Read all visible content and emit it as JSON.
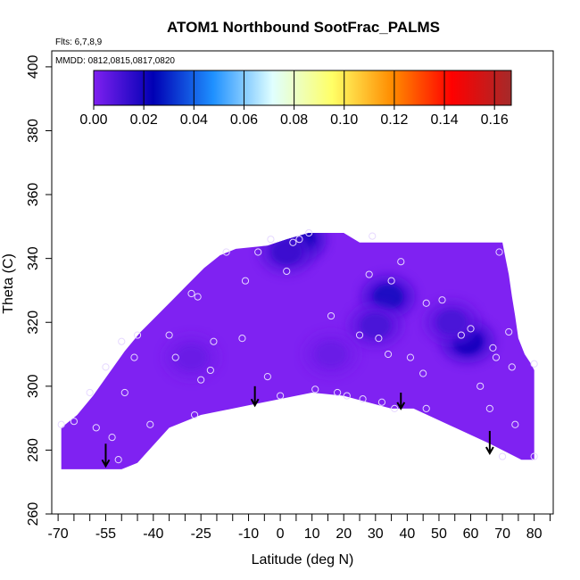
{
  "chart_data": {
    "type": "heatmap",
    "title": "ATOM1 Northbound SootFrac_PALMS",
    "flights_label": "Flts: 6,7,8,9",
    "dates_label": "MMDD: 0812,0815,0817,0820",
    "xlabel": "Latitude (deg N)",
    "ylabel": "Theta (C)",
    "xlim": [
      -72,
      86
    ],
    "ylim": [
      260,
      405
    ],
    "x_ticks": [
      -70,
      -55,
      -40,
      -25,
      -10,
      0,
      10,
      20,
      30,
      40,
      50,
      60,
      70,
      80
    ],
    "x_tick_labels": [
      "-70",
      "-55",
      "-40",
      "-25",
      "-10",
      "0",
      "10",
      "20",
      "30",
      "40",
      "50",
      "60",
      "70",
      "80"
    ],
    "x_minor_ticks": [
      -65,
      -60,
      -50,
      -45,
      -35,
      -30,
      -20,
      -15,
      -5,
      5,
      15,
      25,
      35,
      45,
      55,
      65,
      75,
      85
    ],
    "y_ticks": [
      260,
      280,
      300,
      320,
      340,
      360,
      380,
      400
    ],
    "y_tick_labels": [
      "260",
      "280",
      "300",
      "320",
      "340",
      "360",
      "380",
      "400"
    ],
    "colorbar": {
      "range": [
        0,
        0.1667
      ],
      "ticks": [
        0.0,
        0.02,
        0.04,
        0.06,
        0.08,
        0.1,
        0.12,
        0.14,
        0.16
      ],
      "tick_labels": [
        "0.00",
        "0.02",
        "0.04",
        "0.06",
        "0.08",
        "0.10",
        "0.12",
        "0.14",
        "0.16"
      ],
      "colors": [
        "#7f20f0",
        "#0000b4",
        "#1e90ff",
        "#e0ffff",
        "#ffff66",
        "#ff8c00",
        "#ff0000",
        "#a52a2a"
      ]
    },
    "field": {
      "background_value": 0.0,
      "background_color": "#7f22f2",
      "outline": [
        [
          -69,
          273
        ],
        [
          -69,
          287
        ],
        [
          -64,
          291
        ],
        [
          -59,
          297
        ],
        [
          -54,
          304
        ],
        [
          -49,
          311
        ],
        [
          -44,
          317
        ],
        [
          -39,
          322
        ],
        [
          -34,
          327
        ],
        [
          -29,
          332
        ],
        [
          -24,
          337
        ],
        [
          -19,
          341
        ],
        [
          -14,
          343
        ],
        [
          -4,
          344
        ],
        [
          -1,
          345
        ],
        [
          2,
          346
        ],
        [
          9,
          348
        ],
        [
          20,
          348
        ],
        [
          25,
          345
        ],
        [
          70,
          345
        ],
        [
          71,
          340
        ],
        [
          72,
          335
        ],
        [
          73,
          328
        ],
        [
          74,
          322
        ],
        [
          75,
          315
        ],
        [
          77,
          310
        ],
        [
          79,
          307
        ],
        [
          80,
          305
        ],
        [
          80,
          277
        ],
        [
          76,
          277
        ],
        [
          66,
          282
        ],
        [
          42,
          293
        ],
        [
          35,
          293
        ],
        [
          20,
          297
        ],
        [
          10,
          298
        ],
        [
          0,
          296
        ],
        [
          -10,
          294
        ],
        [
          -25,
          291
        ],
        [
          -35,
          287
        ],
        [
          -45,
          276
        ],
        [
          -50,
          274
        ],
        [
          -69,
          274
        ]
      ],
      "hotspots": [
        {
          "lat": 6,
          "theta": 346,
          "value": 0.022
        },
        {
          "lat": 2,
          "theta": 342,
          "value": 0.013
        },
        {
          "lat": 34,
          "theta": 328,
          "value": 0.018
        },
        {
          "lat": 30,
          "theta": 319,
          "value": 0.01
        },
        {
          "lat": 59,
          "theta": 314,
          "value": 0.02
        },
        {
          "lat": 54,
          "theta": 320,
          "value": 0.01
        },
        {
          "lat": -28,
          "theta": 309,
          "value": 0.004
        },
        {
          "lat": 16,
          "theta": 310,
          "value": 0.004
        }
      ]
    },
    "observations": {
      "lat": [
        -69,
        -65,
        -60,
        -55,
        -50,
        -58,
        -53,
        -51,
        -49,
        -46,
        -45,
        -41,
        -35,
        -33,
        -28,
        -27,
        -26,
        -25,
        -22,
        -21,
        -17,
        -12,
        -11,
        -7,
        -4,
        -3,
        0,
        2,
        4,
        6,
        9,
        11,
        16,
        18,
        21,
        25,
        26,
        28,
        29,
        31,
        32,
        34,
        35,
        36,
        38,
        41,
        45,
        46,
        46,
        51,
        57,
        60,
        63,
        66,
        67,
        68,
        69,
        70,
        72,
        73,
        74,
        80,
        80
      ],
      "theta": [
        288,
        289,
        298,
        306,
        314,
        287,
        284,
        277,
        298,
        309,
        316,
        288,
        316,
        309,
        329,
        291,
        328,
        302,
        305,
        314,
        342,
        315,
        333,
        342,
        303,
        346,
        297,
        336,
        345,
        346,
        348,
        299,
        322,
        298,
        297,
        316,
        296,
        335,
        347,
        315,
        295,
        310,
        333,
        293,
        339,
        309,
        304,
        293,
        326,
        327,
        316,
        318,
        300,
        293,
        312,
        309,
        342,
        278,
        317,
        306,
        288,
        278,
        307
      ]
    },
    "flight_arrows": [
      {
        "lat": -55,
        "theta_top": 282,
        "theta_tip": 275
      },
      {
        "lat": -8,
        "theta_top": 300,
        "theta_tip": 294
      },
      {
        "lat": 38,
        "theta_top": 298,
        "theta_tip": 293
      },
      {
        "lat": 66,
        "theta_top": 286,
        "theta_tip": 279
      }
    ]
  }
}
